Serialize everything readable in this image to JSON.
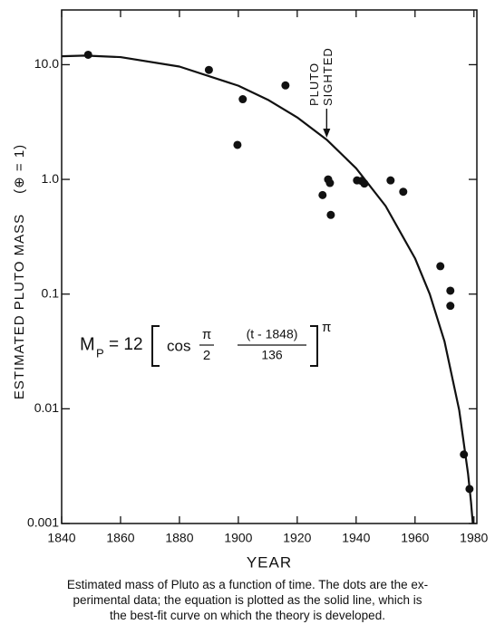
{
  "chart_data": {
    "type": "scatter",
    "x_label": "YEAR",
    "y_label": "ESTIMATED PLUTO MASS",
    "y_label_unit": "(⊕ = 1)",
    "log_y": true,
    "grid": false,
    "xlim": [
      1840,
      1981
    ],
    "ylim": [
      0.001,
      30
    ],
    "xticks": [
      1840,
      1860,
      1880,
      1900,
      1920,
      1940,
      1960,
      1980
    ],
    "yticks": [
      0.001,
      0.01,
      0.1,
      {
        "value": 1,
        "label": "1.0"
      },
      {
        "value": 10,
        "label": "10.0"
      }
    ],
    "series": [
      {
        "type": "scatter",
        "color": "#111111",
        "x": [
          1849,
          1890,
          1901.5,
          1916,
          1899.7,
          1928.6,
          1930.5,
          1931.1,
          1931.4,
          1940.3,
          1941.8,
          1942.8,
          1951.7,
          1956,
          1968.6,
          1972,
          1972,
          1976.6,
          1978.5
        ],
        "values": [
          12.2,
          9.0,
          5.0,
          6.6,
          2.0,
          0.73,
          1.0,
          0.93,
          0.49,
          0.98,
          0.97,
          0.92,
          0.98,
          0.78,
          0.175,
          0.107,
          0.079,
          0.004,
          0.002
        ]
      },
      {
        "type": "line",
        "color": "#111111",
        "x": [
          1840,
          1848,
          1860,
          1880,
          1900,
          1910,
          1920,
          1930,
          1940,
          1950,
          1960,
          1965,
          1970,
          1975,
          1978,
          1979,
          1980
        ],
        "values": [
          11.84,
          12,
          11.64,
          9.63,
          6.56,
          4.95,
          3.47,
          2.22,
          1.25,
          0.587,
          0.205,
          0.1,
          0.0388,
          0.00974,
          0.00272,
          0.00155,
          0.000766
        ]
      }
    ],
    "annotation": {
      "lines": [
        "PLUTO",
        "SIGHTED"
      ],
      "x": 1930
    },
    "equation": {
      "lhs": "M",
      "sub": "P",
      "eq": "= 12",
      "func": "cos",
      "frac1": [
        "π",
        "2"
      ],
      "frac2": [
        "(t - 1848)",
        "136"
      ],
      "exp": "π"
    }
  },
  "caption": [
    "Estimated mass of Pluto as a function of time. The dots are the ex-",
    "perimental data; the equation is plotted as the solid line, which is",
    "the best-fit curve on which the theory is developed."
  ]
}
